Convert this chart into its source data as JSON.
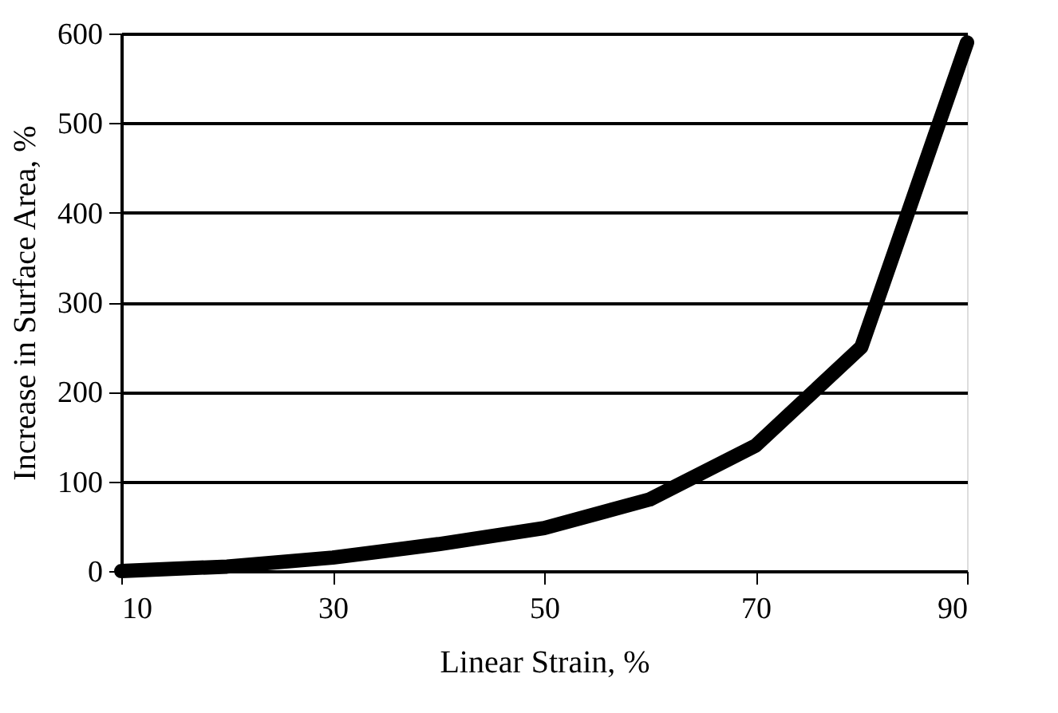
{
  "chart_data": {
    "type": "line",
    "xlabel": "Linear Strain, %",
    "ylabel": "Increase in Surface Area, %",
    "x": [
      10,
      20,
      30,
      40,
      50,
      60,
      70,
      80,
      90
    ],
    "series": [
      {
        "color": "#000000",
        "values": [
          0,
          5,
          15,
          30,
          48,
          80,
          140,
          250,
          590
        ]
      }
    ],
    "xlim": [
      10,
      90
    ],
    "xticks": [
      10,
      30,
      50,
      70,
      90
    ],
    "ylim": [
      0,
      600
    ],
    "yticks": [
      0,
      100,
      200,
      300,
      400,
      500,
      600
    ],
    "grid": "y",
    "line_style": "solid",
    "legend": false
  }
}
